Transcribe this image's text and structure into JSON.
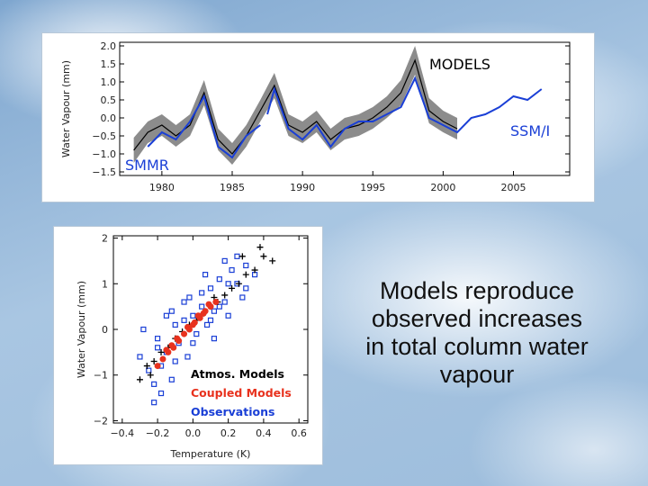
{
  "caption": {
    "lines": [
      "Models reproduce",
      "observed increases",
      "in total column water",
      "vapour"
    ]
  },
  "colors": {
    "models_band": "#8c8c8c",
    "models_line": "#000000",
    "observations": "#1a3fd6",
    "coupled_models": "#e8321e",
    "atmos_models": "#000000"
  },
  "chart_data": [
    {
      "type": "line",
      "title": "",
      "xlabel": "",
      "ylabel": "Water Vapour (mm)",
      "xlim": [
        1977,
        2009
      ],
      "ylim": [
        -1.6,
        2.1
      ],
      "xticks": [
        1980,
        1985,
        1990,
        1995,
        2000,
        2005
      ],
      "yticks": [
        "2.0",
        "1.5",
        "1.0",
        "0.5",
        "0.0",
        "−0.5",
        "−1.0",
        "−1.5"
      ],
      "annotations": [
        "MODELS",
        "SSM/I",
        "SMMR"
      ],
      "series": [
        {
          "name": "MODELS",
          "x": [
            1978,
            1979,
            1980,
            1981,
            1982,
            1983,
            1984,
            1985,
            1986,
            1987,
            1988,
            1989,
            1990,
            1991,
            1992,
            1993,
            1994,
            1995,
            1996,
            1997,
            1998,
            1999,
            2000,
            2001
          ],
          "values": [
            -0.9,
            -0.4,
            -0.2,
            -0.5,
            -0.2,
            0.7,
            -0.6,
            -1.0,
            -0.5,
            0.2,
            0.9,
            -0.2,
            -0.4,
            -0.1,
            -0.6,
            -0.3,
            -0.2,
            0.0,
            0.3,
            0.7,
            1.6,
            0.2,
            -0.1,
            -0.3
          ],
          "band_halfwidth": [
            0.35,
            0.3,
            0.3,
            0.3,
            0.3,
            0.35,
            0.3,
            0.3,
            0.3,
            0.3,
            0.35,
            0.3,
            0.3,
            0.3,
            0.3,
            0.3,
            0.3,
            0.3,
            0.3,
            0.35,
            0.4,
            0.35,
            0.3,
            0.3
          ]
        },
        {
          "name": "SMMR",
          "x": [
            1979,
            1980,
            1981,
            1982,
            1983,
            1984,
            1985,
            1986,
            1987
          ],
          "values": [
            -0.8,
            -0.4,
            -0.6,
            -0.1,
            0.6,
            -0.8,
            -1.1,
            -0.5,
            -0.2
          ]
        },
        {
          "name": "SSM/I",
          "x": [
            1987.5,
            1988,
            1989,
            1990,
            1991,
            1992,
            1993,
            1994,
            1995,
            1996,
            1997,
            1998,
            1999,
            2000,
            2001,
            2002,
            2003,
            2004,
            2005,
            2006,
            2007
          ],
          "values": [
            0.1,
            0.8,
            -0.3,
            -0.6,
            -0.2,
            -0.8,
            -0.3,
            -0.1,
            -0.1,
            0.1,
            0.3,
            1.1,
            0.0,
            -0.2,
            -0.4,
            0.0,
            0.1,
            0.3,
            0.6,
            0.5,
            0.8
          ]
        }
      ]
    },
    {
      "type": "scatter",
      "title": "",
      "xlabel": "Temperature (K)",
      "ylabel": "Water Vapour (mm)",
      "xlim": [
        -0.45,
        0.65
      ],
      "ylim": [
        -2.05,
        2.05
      ],
      "xticks": [
        -0.4,
        -0.2,
        0.0,
        0.2,
        0.4,
        0.6
      ],
      "xtick_labels": [
        "−0.4",
        "−0.2",
        "0.0",
        "0.2",
        "0.4",
        "0.6"
      ],
      "yticks": [
        2,
        1,
        0,
        -1,
        -2
      ],
      "ytick_labels": [
        "2",
        "1",
        "0",
        "−1",
        "−2"
      ],
      "legend_position": "lower-right",
      "series": [
        {
          "name": "Observations",
          "x": [
            -0.3,
            -0.25,
            -0.22,
            -0.2,
            -0.18,
            -0.15,
            -0.12,
            -0.1,
            -0.08,
            -0.05,
            -0.03,
            0.0,
            0.02,
            0.05,
            0.08,
            0.1,
            0.12,
            0.15,
            0.18,
            0.2,
            0.22,
            0.25,
            0.28,
            0.3,
            -0.28,
            -0.2,
            -0.15,
            -0.1,
            -0.05,
            0.0,
            0.05,
            0.1,
            0.15,
            0.2,
            0.25,
            -0.18,
            -0.12,
            0.3,
            0.35,
            0.18,
            0.07,
            -0.02,
            -0.22,
            0.12
          ],
          "values": [
            -0.6,
            -0.9,
            -1.2,
            -0.2,
            -0.8,
            -0.5,
            -1.1,
            0.1,
            -0.3,
            0.2,
            -0.6,
            0.3,
            -0.1,
            0.5,
            0.1,
            0.9,
            0.4,
            1.1,
            0.6,
            0.3,
            1.3,
            1.0,
            0.7,
            1.4,
            0.0,
            -0.4,
            0.3,
            -0.7,
            0.6,
            -0.3,
            0.8,
            0.2,
            0.5,
            1.0,
            1.6,
            -1.4,
            0.4,
            0.9,
            1.2,
            1.5,
            1.2,
            0.7,
            -1.6,
            -0.2
          ]
        },
        {
          "name": "Coupled Models",
          "x": [
            -0.2,
            -0.17,
            -0.14,
            -0.11,
            -0.08,
            -0.05,
            -0.02,
            0.01,
            0.04,
            0.07,
            0.1,
            0.13,
            -0.15,
            -0.09,
            -0.03,
            0.03,
            0.09,
            -0.12,
            0.0,
            0.06
          ],
          "values": [
            -0.8,
            -0.65,
            -0.5,
            -0.4,
            -0.25,
            -0.1,
            0.0,
            0.15,
            0.25,
            0.4,
            0.5,
            0.6,
            -0.45,
            -0.2,
            0.05,
            0.3,
            0.55,
            -0.35,
            0.1,
            0.35
          ]
        },
        {
          "name": "Atmos. Models",
          "x": [
            -0.3,
            -0.26,
            -0.22,
            -0.18,
            -0.14,
            -0.1,
            -0.06,
            -0.02,
            0.02,
            0.06,
            0.1,
            0.14,
            0.18,
            0.22,
            0.26,
            0.3,
            0.35,
            0.4,
            0.45,
            0.38,
            0.28,
            -0.24,
            0.12
          ],
          "values": [
            -1.1,
            -0.8,
            -0.7,
            -0.5,
            -0.4,
            -0.2,
            -0.05,
            0.1,
            0.2,
            0.35,
            0.5,
            0.6,
            0.75,
            0.9,
            1.0,
            1.2,
            1.3,
            1.6,
            1.5,
            1.8,
            1.6,
            -1.0,
            0.7
          ]
        }
      ]
    }
  ]
}
